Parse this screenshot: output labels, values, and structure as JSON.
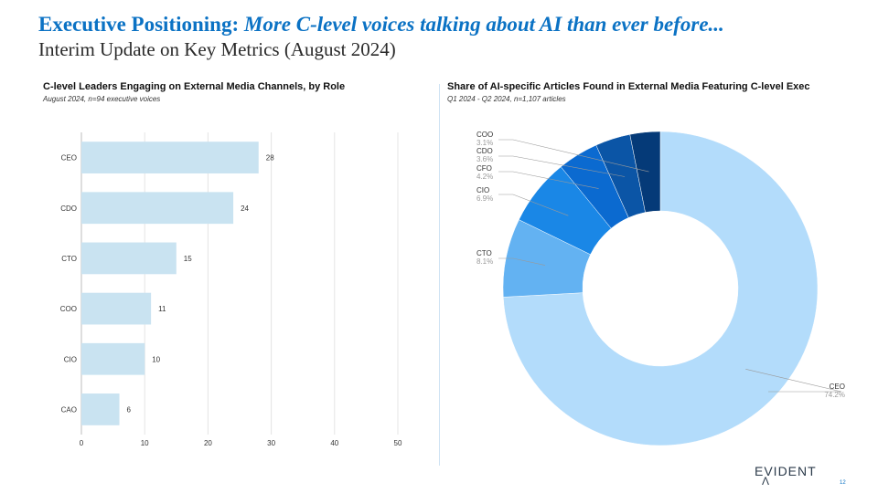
{
  "header": {
    "title_lead": "Executive Positioning:",
    "title_italic": "More C-level voices talking about AI than ever before...",
    "subtitle": "Interim Update on Key Metrics (August 2024)"
  },
  "footer": {
    "logo": "EVIDENT",
    "logo_mark": "Λ",
    "page_number": "12"
  },
  "chart_data": [
    {
      "type": "bar",
      "orientation": "horizontal",
      "title": "C-level Leaders Engaging on External Media Channels, by Role",
      "subtitle": "August 2024, n=94 executive voices",
      "categories": [
        "CEO",
        "CDO",
        "CTO",
        "COO",
        "CIO",
        "CAO"
      ],
      "values": [
        28,
        24,
        15,
        11,
        10,
        6
      ],
      "xlim": [
        0,
        50
      ],
      "xticks": [
        0,
        10,
        20,
        30,
        40,
        50
      ],
      "grid": true,
      "bar_color": "#c9e3f1"
    },
    {
      "type": "pie",
      "style": "donut",
      "title": "Share of AI-specific Articles Found in External Media Featuring C-level Exec",
      "subtitle": "Q1 2024 - Q2 2024, n=1,107 articles",
      "slices": [
        {
          "label": "CEO",
          "value": 74.2,
          "display": "74.2%",
          "color": "#b3dcfb"
        },
        {
          "label": "CTO",
          "value": 8.1,
          "display": "8.1%",
          "color": "#63b2f2"
        },
        {
          "label": "CIO",
          "value": 6.9,
          "display": "6.9%",
          "color": "#1a87e6"
        },
        {
          "label": "CFO",
          "value": 4.2,
          "display": "4.2%",
          "color": "#0b6ad0"
        },
        {
          "label": "CDO",
          "value": 3.6,
          "display": "3.6%",
          "color": "#0b55a6"
        },
        {
          "label": "COO",
          "value": 3.1,
          "display": "3.1%",
          "color": "#053a78"
        }
      ]
    }
  ]
}
